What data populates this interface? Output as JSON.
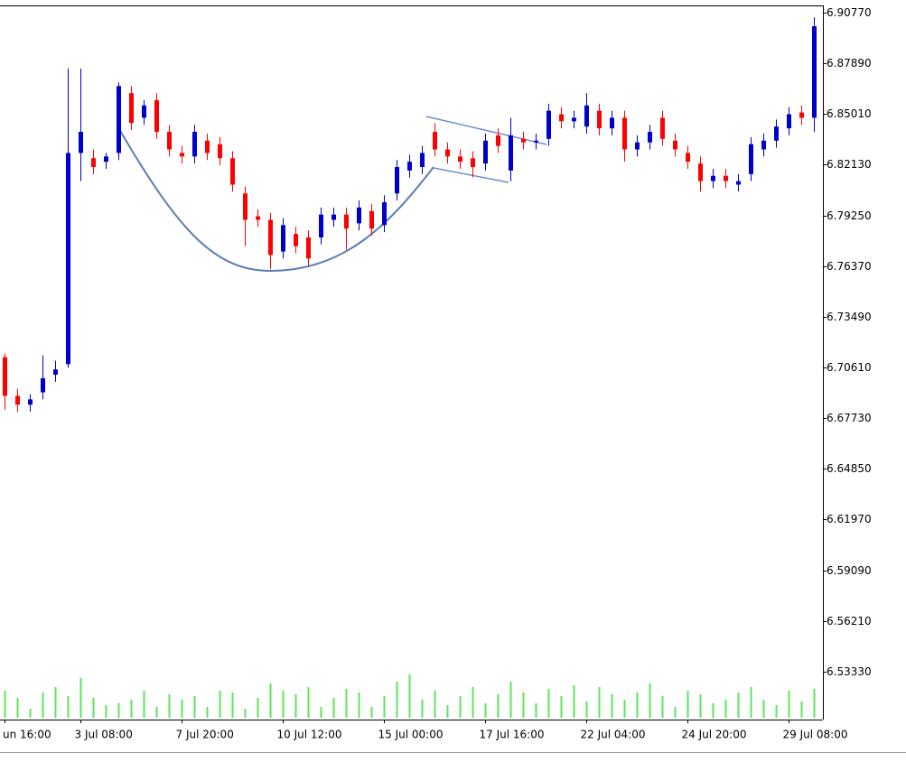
{
  "chart_data": {
    "type": "candlestick",
    "categories": [
      "un 16:00",
      null,
      null,
      null,
      null,
      null,
      "3 Jul 08:00",
      null,
      null,
      null,
      null,
      null,
      null,
      null,
      "7 Jul 20:00",
      null,
      null,
      null,
      null,
      null,
      null,
      null,
      "10 Jul 12:00",
      null,
      null,
      null,
      null,
      null,
      null,
      null,
      "15 Jul 00:00",
      null,
      null,
      null,
      null,
      null,
      null,
      null,
      "17 Jul 16:00",
      null,
      null,
      null,
      null,
      null,
      null,
      null,
      "22 Jul 04:00",
      null,
      null,
      null,
      null,
      null,
      null,
      null,
      "24 Jul 20:00",
      null,
      null,
      null,
      null,
      null,
      null,
      null,
      "29 Jul 08:00",
      null,
      null
    ],
    "open": [
      6.712,
      6.69,
      6.685,
      6.692,
      6.702,
      6.708,
      6.828,
      6.825,
      6.823,
      6.828,
      6.862,
      6.848,
      6.858,
      6.84,
      6.828,
      6.826,
      6.835,
      6.833,
      6.825,
      6.805,
      6.792,
      6.79,
      6.772,
      6.782,
      6.78,
      6.78,
      6.79,
      6.793,
      6.788,
      6.795,
      6.787,
      6.805,
      6.818,
      6.82,
      6.84,
      6.83,
      6.826,
      6.825,
      6.822,
      6.838,
      6.818,
      6.836,
      6.834,
      6.836,
      6.85,
      6.846,
      6.843,
      6.852,
      6.842,
      6.848,
      6.83,
      6.834,
      6.848,
      6.835,
      6.828,
      6.822,
      6.812,
      6.815,
      6.81,
      6.816,
      6.83,
      6.835,
      6.842,
      6.851,
      6.848
    ],
    "high": [
      6.714,
      6.694,
      6.691,
      6.713,
      6.71,
      6.876,
      6.876,
      6.83,
      6.828,
      6.868,
      6.866,
      6.858,
      6.862,
      6.844,
      6.832,
      6.844,
      6.839,
      6.837,
      6.829,
      6.809,
      6.796,
      6.794,
      6.791,
      6.786,
      6.784,
      6.797,
      6.797,
      6.797,
      6.801,
      6.799,
      6.804,
      6.824,
      6.827,
      6.832,
      6.845,
      6.834,
      6.83,
      6.829,
      6.839,
      6.842,
      6.848,
      6.84,
      6.839,
      6.856,
      6.854,
      6.852,
      6.862,
      6.856,
      6.852,
      6.852,
      6.838,
      6.844,
      6.852,
      6.839,
      6.832,
      6.826,
      6.819,
      6.819,
      6.816,
      6.837,
      6.839,
      6.847,
      6.854,
      6.855,
      6.905
    ],
    "low": [
      6.682,
      6.681,
      6.681,
      6.688,
      6.698,
      6.706,
      6.812,
      6.816,
      6.819,
      6.824,
      6.841,
      6.844,
      6.836,
      6.826,
      6.822,
      6.822,
      6.824,
      6.821,
      6.806,
      6.775,
      6.786,
      6.762,
      6.768,
      6.771,
      6.764,
      6.776,
      6.786,
      6.773,
      6.784,
      6.781,
      6.783,
      6.801,
      6.814,
      6.816,
      6.826,
      6.822,
      6.819,
      6.814,
      6.818,
      6.828,
      6.812,
      6.83,
      6.83,
      6.832,
      6.842,
      6.842,
      6.839,
      6.838,
      6.838,
      6.823,
      6.826,
      6.83,
      6.832,
      6.826,
      6.819,
      6.806,
      6.808,
      6.808,
      6.806,
      6.812,
      6.826,
      6.831,
      6.838,
      6.844,
      6.84
    ],
    "close": [
      6.69,
      6.685,
      6.688,
      6.7,
      6.705,
      6.828,
      6.84,
      6.82,
      6.826,
      6.866,
      6.845,
      6.855,
      6.84,
      6.83,
      6.826,
      6.84,
      6.828,
      6.825,
      6.81,
      6.79,
      6.79,
      6.77,
      6.787,
      6.775,
      6.768,
      6.793,
      6.793,
      6.785,
      6.797,
      6.785,
      6.8,
      6.82,
      6.823,
      6.828,
      6.83,
      6.826,
      6.823,
      6.82,
      6.835,
      6.832,
      6.838,
      6.834,
      6.835,
      6.852,
      6.846,
      6.848,
      6.855,
      6.842,
      6.848,
      6.83,
      6.834,
      6.84,
      6.836,
      6.83,
      6.823,
      6.812,
      6.815,
      6.812,
      6.812,
      6.833,
      6.835,
      6.843,
      6.85,
      6.848,
      6.9
    ],
    "volume": [
      30,
      22,
      10,
      28,
      34,
      24,
      44,
      22,
      14,
      16,
      20,
      30,
      12,
      26,
      20,
      24,
      12,
      30,
      28,
      10,
      22,
      38,
      30,
      26,
      34,
      12,
      22,
      32,
      28,
      12,
      24,
      40,
      48,
      20,
      30,
      14,
      24,
      34,
      16,
      26,
      40,
      28,
      16,
      32,
      24,
      36,
      18,
      34,
      26,
      20,
      28,
      38,
      24,
      12,
      30,
      26,
      16,
      20,
      28,
      34,
      20,
      14,
      30,
      18,
      32
    ],
    "bull_color": "#0000cc",
    "bear_color": "#ff0000",
    "volume_color": "#5ee35e",
    "vlim": [
      0,
      50
    ],
    "ylim": [
      6.5071,
      6.9108
    ],
    "yticks": [
      {
        "value": 6.9077,
        "label": "6.90770"
      },
      {
        "value": 6.8789,
        "label": "6.87890"
      },
      {
        "value": 6.8501,
        "label": "6.85010"
      },
      {
        "value": 6.8213,
        "label": "6.82130"
      },
      {
        "value": 6.7925,
        "label": "6.79250"
      },
      {
        "value": 6.7637,
        "label": "6.76370"
      },
      {
        "value": 6.7349,
        "label": "6.73490"
      },
      {
        "value": 6.7061,
        "label": "6.70610"
      },
      {
        "value": 6.6773,
        "label": "6.67730"
      },
      {
        "value": 6.6485,
        "label": "6.64850"
      },
      {
        "value": 6.6197,
        "label": "6.61970"
      },
      {
        "value": 6.5909,
        "label": "6.59090"
      },
      {
        "value": 6.5621,
        "label": "6.56210"
      },
      {
        "value": 6.5333,
        "label": "6.53330"
      }
    ]
  }
}
